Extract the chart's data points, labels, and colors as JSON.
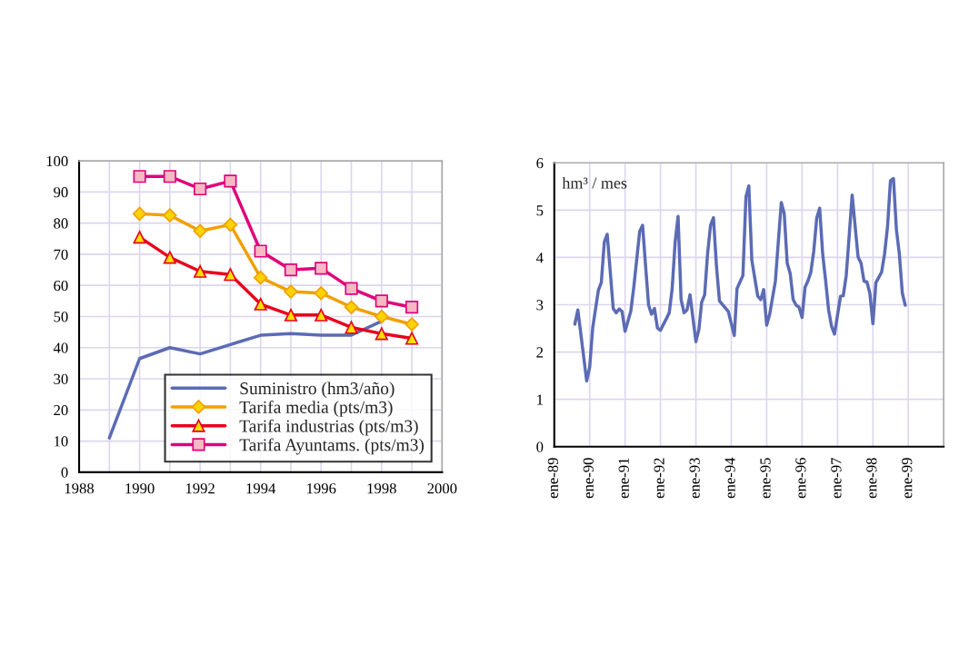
{
  "chart_data": [
    {
      "type": "line",
      "x": [
        1989,
        1990,
        1991,
        1992,
        1993,
        1994,
        1995,
        1996,
        1997,
        1998,
        1999
      ],
      "xlim": [
        1988,
        2000
      ],
      "xticks": [
        1988,
        {
          "value": 1989,
          "label": null
        },
        1990,
        {
          "value": 1991,
          "label": null
        },
        1992,
        {
          "value": 1993,
          "label": null
        },
        1994,
        {
          "value": 1995,
          "label": null
        },
        1996,
        {
          "value": 1997,
          "label": null
        },
        1998,
        {
          "value": 1999,
          "label": null
        },
        2000
      ],
      "ylim": [
        0,
        100
      ],
      "yticks": [
        0,
        10,
        20,
        30,
        40,
        50,
        60,
        70,
        80,
        90,
        100
      ],
      "grid": true,
      "legend": "bottom right",
      "series": [
        {
          "name": "Suministro (hm3/año)",
          "color": "#5b6bb5",
          "marker": "none",
          "values": [
            11,
            36.5,
            40,
            38,
            41,
            44,
            44.5,
            44,
            44,
            48.5,
            null
          ]
        },
        {
          "name": "Tarifa media (pts/m3)",
          "color": "#f0a000",
          "marker": "diamond",
          "values": [
            null,
            83,
            82.5,
            77.5,
            79.5,
            62.5,
            58,
            57.5,
            53,
            50,
            47.5
          ]
        },
        {
          "name": "Tarifa industrias (pts/m3)",
          "color": "#e8001c",
          "marker": "triangle",
          "values": [
            null,
            75.5,
            69,
            64.5,
            63.5,
            54,
            50.5,
            50.5,
            46.5,
            44.5,
            43
          ]
        },
        {
          "name": "Tarifa Ayuntams. (pts/m3)",
          "color": "#e0007a",
          "marker": "square",
          "values": [
            null,
            95,
            95,
            91,
            93.5,
            71,
            65,
            65.5,
            59,
            55,
            53
          ]
        }
      ]
    },
    {
      "type": "line",
      "ylabel": "hm³ / mes",
      "grid": true,
      "xlim": [
        "1989-01",
        "2000-01"
      ],
      "xticks": [
        {
          "value": "1989-01",
          "label": "ene-89"
        },
        {
          "value": "1990-01",
          "label": "ene-90"
        },
        {
          "value": "1991-01",
          "label": "ene-91"
        },
        {
          "value": "1992-01",
          "label": "ene-92"
        },
        {
          "value": "1993-01",
          "label": "ene-93"
        },
        {
          "value": "1994-01",
          "label": "ene-94"
        },
        {
          "value": "1995-01",
          "label": "ene-95"
        },
        {
          "value": "1996-01",
          "label": "ene-96"
        },
        {
          "value": "1997-01",
          "label": "ene-97"
        },
        {
          "value": "1998-01",
          "label": "ene-98"
        },
        {
          "value": "1999-01",
          "label": "ene-99"
        }
      ],
      "ylim": [
        0,
        6
      ],
      "yticks": [
        0,
        1,
        2,
        3,
        4,
        5,
        6
      ],
      "x": [
        "1989-08",
        "1989-09",
        "1989-12",
        "1990-01",
        "1990-02",
        "1990-04",
        "1990-05",
        "1990-06",
        "1990-07",
        "1990-09",
        "1990-10",
        "1990-11",
        "1990-12",
        "1991-01",
        "1991-03",
        "1991-04",
        "1991-06",
        "1991-07",
        "1991-08",
        "1991-09",
        "1991-10",
        "1991-11",
        "1991-12",
        "1992-01",
        "1992-03",
        "1992-04",
        "1992-05",
        "1992-06",
        "1992-07",
        "1992-08",
        "1992-09",
        "1992-10",
        "1992-11",
        "1993-01",
        "1993-02",
        "1993-03",
        "1993-04",
        "1993-05",
        "1993-06",
        "1993-07",
        "1993-08",
        "1993-09",
        "1993-12",
        "1994-02",
        "1994-03",
        "1994-05",
        "1994-06",
        "1994-07",
        "1994-08",
        "1994-10",
        "1994-11",
        "1994-12",
        "1995-01",
        "1995-02",
        "1995-04",
        "1995-05",
        "1995-06",
        "1995-07",
        "1995-08",
        "1995-09",
        "1995-10",
        "1995-11",
        "1995-12",
        "1996-01",
        "1996-02",
        "1996-03",
        "1996-04",
        "1996-05",
        "1996-06",
        "1996-07",
        "1996-08",
        "1996-09",
        "1996-10",
        "1996-11",
        "1996-12",
        "1997-02",
        "1997-03",
        "1997-04",
        "1997-05",
        "1997-06",
        "1997-08",
        "1997-09",
        "1997-10",
        "1997-11",
        "1997-12",
        "1998-01",
        "1998-02",
        "1998-04",
        "1998-05",
        "1998-06",
        "1998-07",
        "1998-08",
        "1998-09",
        "1998-10",
        "1998-11",
        "1998-12"
      ],
      "series": [
        {
          "color": "#5b6bb5",
          "values": [
            2.59,
            2.89,
            1.39,
            1.68,
            2.51,
            3.31,
            3.47,
            4.33,
            4.49,
            2.92,
            2.83,
            2.91,
            2.86,
            2.44,
            2.86,
            3.37,
            4.55,
            4.68,
            3.82,
            2.99,
            2.8,
            2.92,
            2.51,
            2.46,
            2.7,
            2.83,
            3.34,
            4.33,
            4.87,
            3.11,
            2.83,
            2.89,
            3.21,
            2.22,
            2.48,
            3.05,
            3.21,
            4.07,
            4.68,
            4.84,
            3.82,
            3.08,
            2.86,
            2.35,
            3.34,
            3.62,
            5.28,
            5.51,
            3.94,
            3.18,
            3.11,
            3.32,
            2.57,
            2.8,
            3.5,
            4.33,
            5.16,
            4.93,
            3.88,
            3.66,
            3.11,
            2.99,
            2.95,
            2.73,
            3.37,
            3.5,
            3.69,
            4.14,
            4.84,
            5.04,
            4.07,
            3.5,
            2.89,
            2.54,
            2.38,
            3.18,
            3.19,
            3.62,
            4.45,
            5.32,
            4.01,
            3.88,
            3.5,
            3.48,
            3.24,
            2.6,
            3.47,
            3.69,
            4.07,
            4.65,
            5.62,
            5.67,
            4.58,
            4.07,
            3.24,
            2.99
          ]
        }
      ]
    }
  ]
}
